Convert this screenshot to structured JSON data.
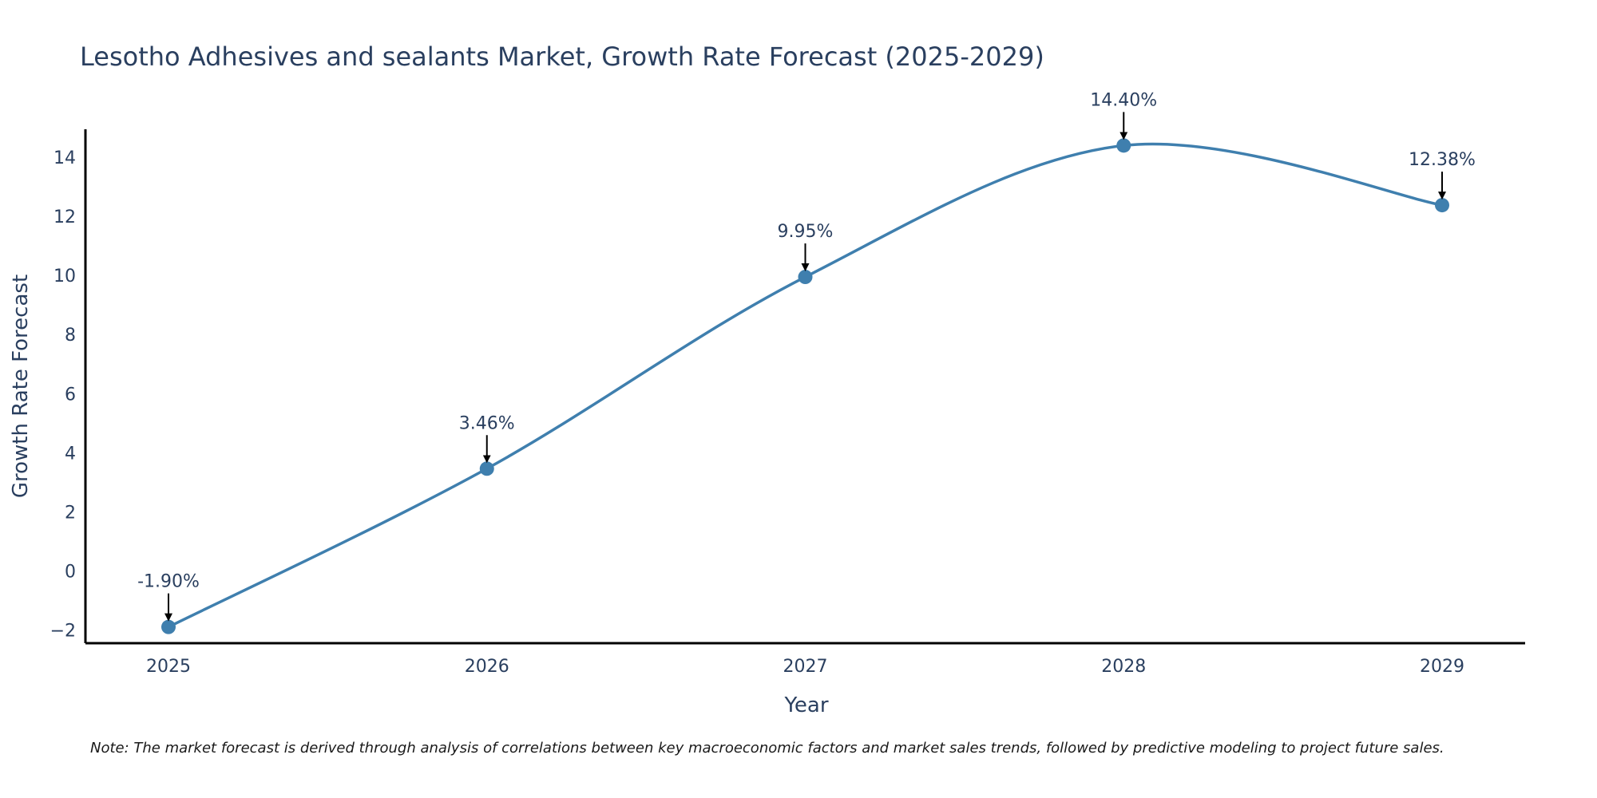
{
  "chart_data": {
    "type": "line",
    "title": "Lesotho Adhesives and sealants Market, Growth Rate Forecast (2025-2029)",
    "xlabel": "Year",
    "ylabel": "Growth Rate Forecast",
    "categories": [
      "2025",
      "2026",
      "2027",
      "2028",
      "2029"
    ],
    "series": [
      {
        "name": "Growth Rate Forecast",
        "values": [
          -1.9,
          3.46,
          9.95,
          14.4,
          12.38
        ],
        "labels": [
          "-1.90%",
          "3.46%",
          "9.95%",
          "14.40%",
          "12.38%"
        ],
        "color": "#3f7fae"
      }
    ],
    "yticks": [
      -2,
      0,
      2,
      4,
      6,
      8,
      10,
      12,
      14
    ],
    "ytick_labels": [
      "−2",
      "0",
      "2",
      "4",
      "6",
      "8",
      "10",
      "12",
      "14"
    ],
    "ylim": [
      -2.45,
      14.95
    ],
    "grid": false,
    "line_shape": "spline"
  },
  "note": "Note: The market forecast is derived through analysis of correlations between key macroeconomic factors and market sales trends, followed by predictive modeling to project future sales."
}
